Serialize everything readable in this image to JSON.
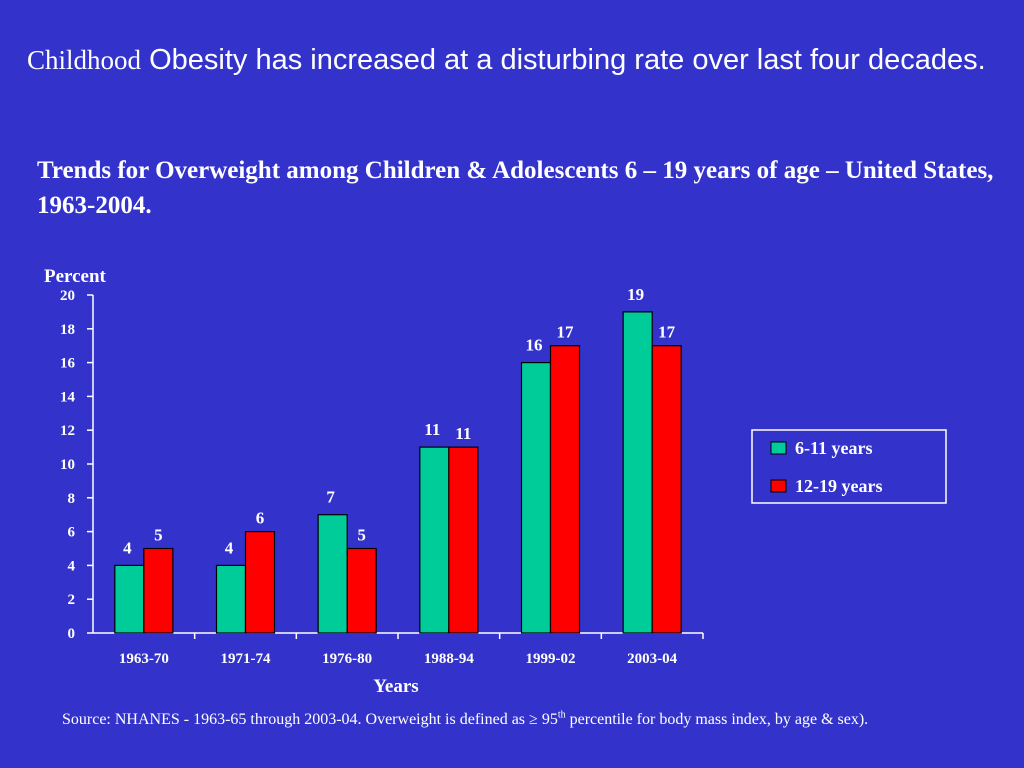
{
  "title": {
    "lead": "Childhood",
    "rest": " Obesity has increased at a disturbing rate over last four decades."
  },
  "subtitle": "Trends for Overweight among Children & Adolescents 6 – 19 years of age – United States, 1963-2004.",
  "source": {
    "before": "Source: NHANES - 1963-65 through 2003-04. Overweight is defined as ≥ 95",
    "sup": "th",
    "after": " percentile for body mass index, by age & sex)."
  },
  "colors": {
    "background": "#3333cc",
    "series1": "#00cc99",
    "series2": "#ff0000"
  },
  "chart_data": {
    "type": "bar",
    "ylabel": "Percent",
    "xlabel": "Years",
    "ylim": [
      0,
      20
    ],
    "yticks": [
      0,
      2,
      4,
      6,
      8,
      10,
      12,
      14,
      16,
      18,
      20
    ],
    "categories": [
      "1963-70",
      "1971-74",
      "1976-80",
      "1988-94",
      "1999-02",
      "2003-04"
    ],
    "series": [
      {
        "name": "6-11 years",
        "values": [
          4,
          4,
          7,
          11,
          16,
          19
        ]
      },
      {
        "name": "12-19 years",
        "values": [
          5,
          6,
          5,
          11,
          17,
          17
        ]
      }
    ],
    "legend": "right",
    "grid": false
  }
}
